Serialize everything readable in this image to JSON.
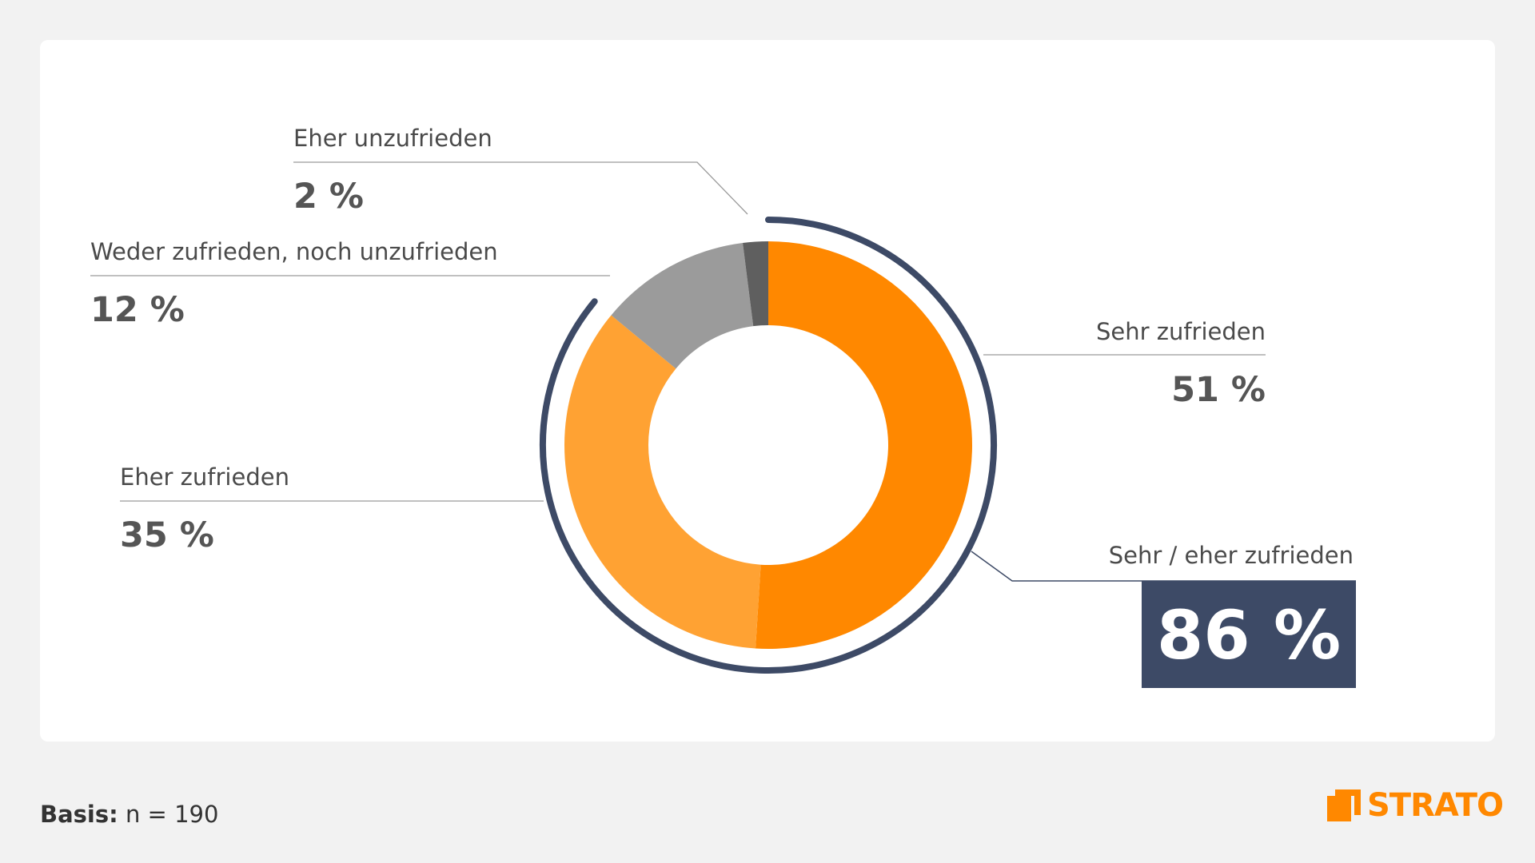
{
  "chart_data": {
    "type": "pie",
    "variant": "donut",
    "slices": [
      {
        "label": "Sehr zufrieden",
        "value": 51,
        "value_label": "51 %",
        "color": "#ff8800"
      },
      {
        "label": "Eher zufrieden",
        "value": 35,
        "value_label": "35 %",
        "color": "#ffa233"
      },
      {
        "label": "Weder zufrieden, noch unzufrieden",
        "value": 12,
        "value_label": "12 %",
        "color": "#9b9b9b"
      },
      {
        "label": "Eher unzufrieden",
        "value": 2,
        "value_label": "2 %",
        "color": "#5f5f5f"
      }
    ],
    "summary": {
      "label": "Sehr / eher zufrieden",
      "value": 86,
      "value_label": "86 %",
      "color": "#3d4a66"
    }
  },
  "footer": {
    "basis_label": "Basis:",
    "basis_value": "n = 190"
  },
  "logo": {
    "text": "STRATO",
    "color": "#ff8800"
  }
}
